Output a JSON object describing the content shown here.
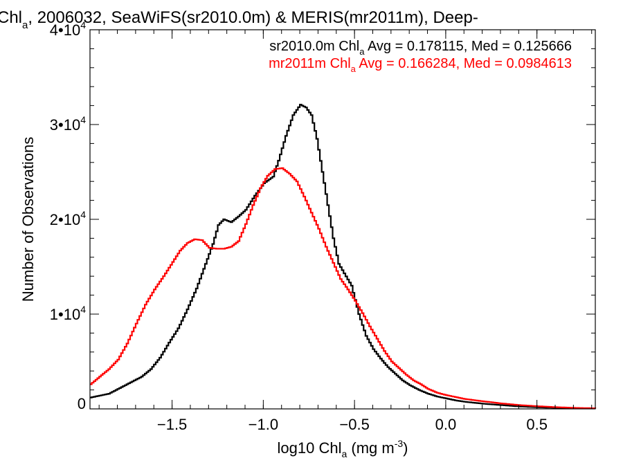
{
  "chart_data": {
    "type": "line",
    "step": true,
    "title_prefix": "Chl",
    "title_sub": "a",
    "title_suffix": ", 2006032, SeaWiFS(sr2010.0m) & MERIS(mr2011m), Deep-",
    "xlabel_prefix": "log10 Chl",
    "xlabel_sub": "a",
    "xlabel_mid": " (mg m",
    "xlabel_sup": "-3",
    "xlabel_suffix": ")",
    "ylabel": "Number of Observations",
    "xlim": [
      -1.95,
      0.82
    ],
    "ylim": [
      0,
      40000
    ],
    "x_ticks": [
      {
        "value": -1.5,
        "label": "−1.5"
      },
      {
        "value": -1.0,
        "label": "−1.0"
      },
      {
        "value": -0.5,
        "label": "−0.5"
      },
      {
        "value": 0.0,
        "label": "0.0"
      },
      {
        "value": 0.5,
        "label": "0.5"
      }
    ],
    "x_minor_step": 0.1,
    "y_ticks": [
      {
        "value": 0,
        "label": "0",
        "exp": ""
      },
      {
        "value": 10000,
        "label": "1•10",
        "exp": "4"
      },
      {
        "value": 20000,
        "label": "2•10",
        "exp": "4"
      },
      {
        "value": 30000,
        "label": "3•10",
        "exp": "4"
      },
      {
        "value": 40000,
        "label": "4•10",
        "exp": "4"
      }
    ],
    "y_minor_step": 2000,
    "legend": [
      {
        "prefix": "sr2010.0m Chl",
        "sub": "a",
        "suffix": " Avg = 0.178115, Med = 0.125666",
        "color": "#000000"
      },
      {
        "prefix": "mr2011m Chl",
        "sub": "a",
        "suffix": " Avg = 0.166284, Med = 0.0984613",
        "color": "#ff0000"
      }
    ],
    "series": [
      {
        "color": "#000000",
        "points": [
          [
            -1.95,
            1200
          ],
          [
            -1.85,
            1600
          ],
          [
            -1.78,
            2300
          ],
          [
            -1.72,
            2900
          ],
          [
            -1.67,
            3400
          ],
          [
            -1.62,
            4200
          ],
          [
            -1.57,
            5400
          ],
          [
            -1.52,
            7000
          ],
          [
            -1.47,
            8500
          ],
          [
            -1.42,
            10500
          ],
          [
            -1.37,
            12700
          ],
          [
            -1.32,
            15300
          ],
          [
            -1.28,
            17400
          ],
          [
            -1.25,
            19400
          ],
          [
            -1.22,
            20000
          ],
          [
            -1.18,
            19700
          ],
          [
            -1.14,
            20300
          ],
          [
            -1.1,
            21000
          ],
          [
            -1.05,
            22500
          ],
          [
            -1.0,
            23800
          ],
          [
            -0.95,
            24500
          ],
          [
            -0.92,
            26200
          ],
          [
            -0.88,
            28800
          ],
          [
            -0.84,
            31000
          ],
          [
            -0.8,
            32100
          ],
          [
            -0.77,
            31800
          ],
          [
            -0.74,
            31000
          ],
          [
            -0.71,
            28500
          ],
          [
            -0.68,
            25000
          ],
          [
            -0.65,
            21500
          ],
          [
            -0.62,
            18000
          ],
          [
            -0.59,
            15300
          ],
          [
            -0.56,
            14300
          ],
          [
            -0.52,
            13000
          ],
          [
            -0.48,
            10000
          ],
          [
            -0.44,
            7700
          ],
          [
            -0.4,
            6300
          ],
          [
            -0.36,
            5300
          ],
          [
            -0.32,
            4400
          ],
          [
            -0.28,
            3700
          ],
          [
            -0.24,
            3000
          ],
          [
            -0.2,
            2500
          ],
          [
            -0.15,
            2000
          ],
          [
            -0.1,
            1600
          ],
          [
            -0.05,
            1300
          ],
          [
            0.0,
            1100
          ],
          [
            0.05,
            900
          ],
          [
            0.1,
            750
          ],
          [
            0.2,
            550
          ],
          [
            0.3,
            400
          ],
          [
            0.4,
            260
          ],
          [
            0.5,
            170
          ],
          [
            0.6,
            110
          ],
          [
            0.7,
            70
          ],
          [
            0.82,
            40
          ]
        ]
      },
      {
        "color": "#ff0000",
        "points": [
          [
            -1.95,
            2600
          ],
          [
            -1.9,
            3400
          ],
          [
            -1.85,
            4200
          ],
          [
            -1.8,
            5200
          ],
          [
            -1.75,
            6900
          ],
          [
            -1.7,
            9000
          ],
          [
            -1.65,
            11000
          ],
          [
            -1.6,
            12600
          ],
          [
            -1.55,
            14000
          ],
          [
            -1.5,
            15500
          ],
          [
            -1.46,
            16700
          ],
          [
            -1.42,
            17500
          ],
          [
            -1.38,
            17900
          ],
          [
            -1.34,
            17800
          ],
          [
            -1.3,
            17000
          ],
          [
            -1.26,
            16900
          ],
          [
            -1.22,
            16900
          ],
          [
            -1.18,
            17100
          ],
          [
            -1.14,
            17700
          ],
          [
            -1.1,
            19500
          ],
          [
            -1.06,
            21500
          ],
          [
            -1.02,
            23300
          ],
          [
            -0.98,
            24600
          ],
          [
            -0.94,
            25300
          ],
          [
            -0.9,
            25400
          ],
          [
            -0.86,
            24800
          ],
          [
            -0.82,
            24000
          ],
          [
            -0.78,
            22400
          ],
          [
            -0.74,
            20700
          ],
          [
            -0.7,
            19000
          ],
          [
            -0.66,
            17100
          ],
          [
            -0.62,
            15400
          ],
          [
            -0.58,
            13700
          ],
          [
            -0.54,
            12600
          ],
          [
            -0.5,
            11400
          ],
          [
            -0.46,
            10100
          ],
          [
            -0.42,
            8700
          ],
          [
            -0.38,
            7400
          ],
          [
            -0.34,
            6100
          ],
          [
            -0.3,
            5000
          ],
          [
            -0.26,
            4300
          ],
          [
            -0.22,
            3600
          ],
          [
            -0.18,
            3000
          ],
          [
            -0.14,
            2600
          ],
          [
            -0.1,
            2100
          ],
          [
            -0.05,
            1700
          ],
          [
            0.0,
            1450
          ],
          [
            0.05,
            1250
          ],
          [
            0.1,
            1050
          ],
          [
            0.2,
            800
          ],
          [
            0.3,
            580
          ],
          [
            0.4,
            400
          ],
          [
            0.5,
            280
          ],
          [
            0.6,
            180
          ],
          [
            0.7,
            110
          ],
          [
            0.82,
            60
          ]
        ]
      }
    ]
  }
}
